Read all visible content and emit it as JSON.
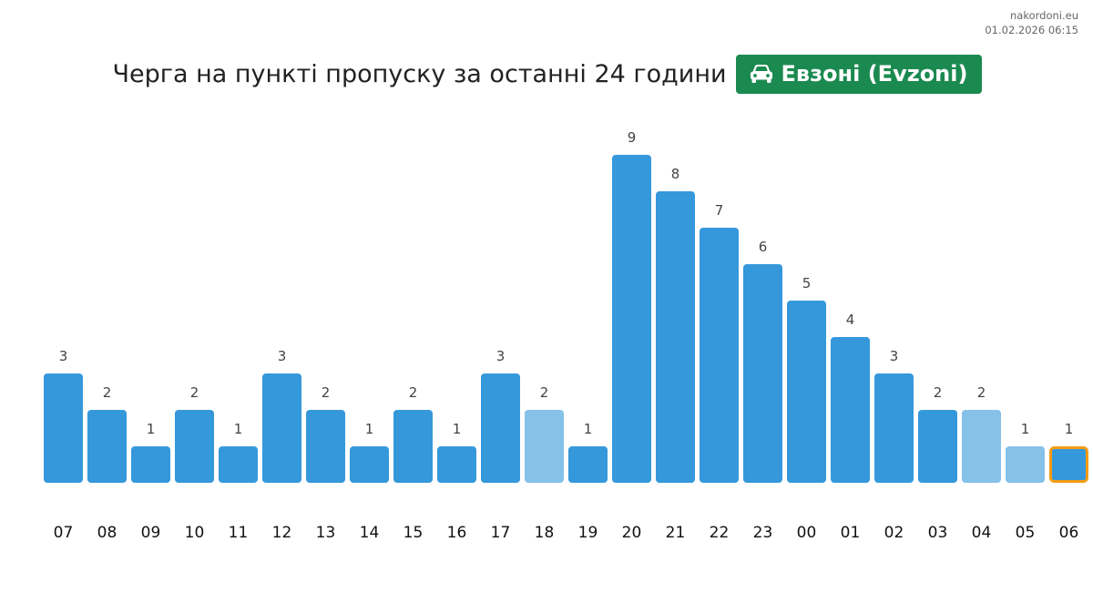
{
  "site": {
    "domain": "nakordoni.eu",
    "timestamp": "01.02.2026 06:15"
  },
  "header": {
    "title": "Черга на пункті пропуску за останні 24 години",
    "badge_icon": "car-icon",
    "badge_label": "Евзоні (Evzoni)",
    "badge_color": "#1b8a50"
  },
  "chart_data": {
    "type": "bar",
    "categories": [
      "07",
      "08",
      "09",
      "10",
      "11",
      "12",
      "13",
      "14",
      "15",
      "16",
      "17",
      "18",
      "19",
      "20",
      "21",
      "22",
      "23",
      "00",
      "01",
      "02",
      "03",
      "04",
      "05",
      "06"
    ],
    "values": [
      3,
      2,
      1,
      2,
      1,
      3,
      2,
      1,
      2,
      1,
      3,
      2,
      1,
      9,
      8,
      7,
      6,
      5,
      4,
      3,
      2,
      2,
      1,
      1
    ],
    "estimated": [
      false,
      false,
      false,
      false,
      false,
      false,
      false,
      false,
      false,
      false,
      false,
      true,
      false,
      false,
      false,
      false,
      false,
      false,
      false,
      false,
      false,
      true,
      true,
      false
    ],
    "current_index": 23,
    "ylim": [
      0,
      9
    ],
    "title": "Черга на пункті пропуску за останні 24 години",
    "xlabel": "",
    "ylabel": "",
    "colors": {
      "bar": "#3598db",
      "bar_light": "#85c1e9",
      "current_outline": "#f39c12"
    },
    "grid": false
  }
}
